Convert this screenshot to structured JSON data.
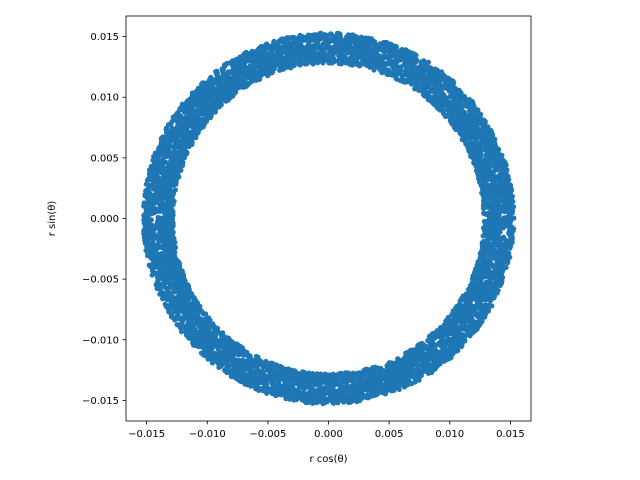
{
  "chart_data": {
    "type": "scatter",
    "title": "",
    "xlabel": "r cos(θ)",
    "ylabel": "r sin(θ)",
    "xlim": [
      -0.0167,
      0.0167
    ],
    "ylim": [
      -0.0167,
      0.0167
    ],
    "xticks": [
      -0.015,
      -0.01,
      -0.005,
      0.0,
      0.005,
      0.01,
      0.015
    ],
    "xtick_labels": [
      "−0.015",
      "−0.010",
      "−0.005",
      "0.000",
      "0.005",
      "0.010",
      "0.015"
    ],
    "yticks": [
      -0.015,
      -0.01,
      -0.005,
      0.0,
      0.005,
      0.01,
      0.015
    ],
    "ytick_labels": [
      "−0.015",
      "−0.010",
      "−0.005",
      "0.000",
      "0.005",
      "0.010",
      "0.015"
    ],
    "grid": false,
    "legend": "none",
    "color": "#1f77b4",
    "series": [
      {
        "description_shape": "ring",
        "r_inner": 0.0128,
        "r_outer": 0.0153,
        "theta_range": [
          0,
          6.2832
        ],
        "approx_points": 6000
      }
    ]
  }
}
